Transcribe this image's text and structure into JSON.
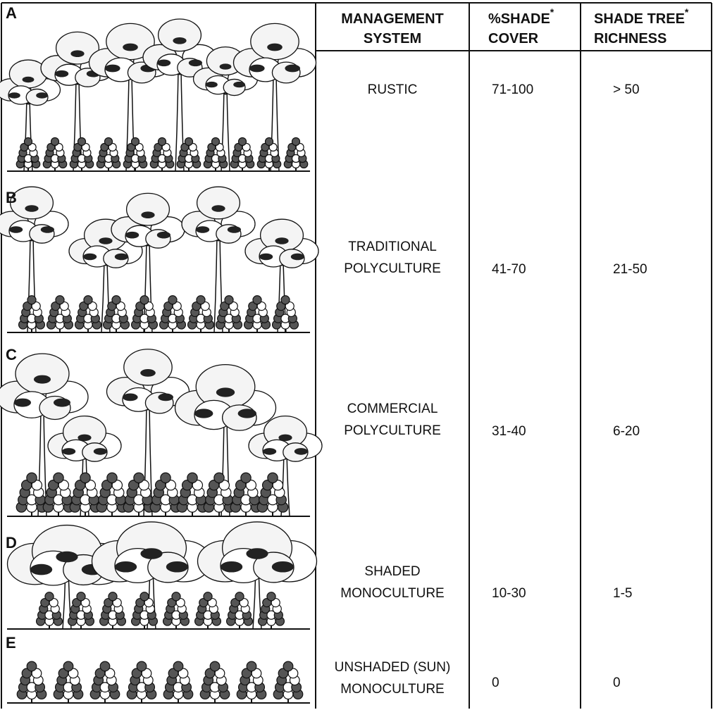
{
  "panels": [
    "A",
    "B",
    "C",
    "D",
    "E"
  ],
  "table": {
    "headers": [
      {
        "lines": [
          "MANAGEMENT",
          "SYSTEM"
        ]
      },
      {
        "lines": [
          "%SHADE",
          "COVER"
        ],
        "mark": "*"
      },
      {
        "lines": [
          "SHADE TREE",
          "RICHNESS"
        ],
        "mark": "*"
      }
    ],
    "rows": [
      {
        "system": [
          "RUSTIC"
        ],
        "cover": "71-100",
        "richness": "> 50"
      },
      {
        "system": [
          "TRADITIONAL",
          "POLYCULTURE"
        ],
        "cover": "41-70",
        "richness": "21-50"
      },
      {
        "system": [
          "COMMERCIAL",
          "POLYCULTURE"
        ],
        "cover": "31-40",
        "richness": "6-20"
      },
      {
        "system": [
          "SHADED",
          "MONOCULTURE"
        ],
        "cover": "10-30",
        "richness": "1-5"
      },
      {
        "system": [
          "UNSHADED (SUN)",
          "MONOCULTURE"
        ],
        "cover": "0",
        "richness": "0"
      }
    ]
  }
}
